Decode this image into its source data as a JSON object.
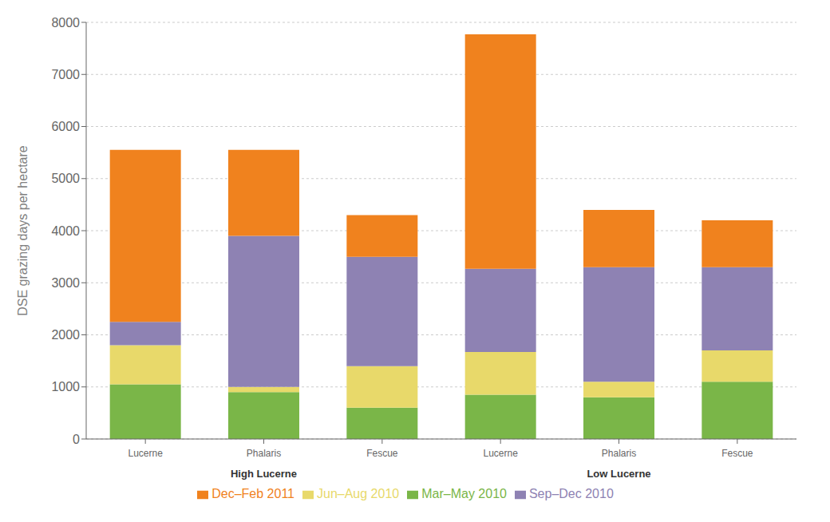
{
  "chart_data": {
    "type": "bar",
    "stacked": true,
    "categories": [
      "Lucerne",
      "Phalaris",
      "Fescue",
      "Lucerne",
      "Phalaris",
      "Fescue"
    ],
    "category_groups": [
      "High Lucerne",
      "High Lucerne",
      "High Lucerne",
      "Low Lucerne",
      "Low Lucerne",
      "Low Lucerne"
    ],
    "series": [
      {
        "name": "Mar–May 2010",
        "color": "#7ab648",
        "values": [
          1050,
          900,
          600,
          850,
          800,
          1100
        ]
      },
      {
        "name": "Jun–Aug 2010",
        "color": "#e8d96a",
        "values": [
          750,
          100,
          800,
          820,
          300,
          600
        ]
      },
      {
        "name": "Sep–Dec 2010",
        "color": "#8e82b3",
        "values": [
          450,
          2900,
          2100,
          1600,
          2200,
          1600
        ]
      },
      {
        "name": "Dec–Feb 2011",
        "color": "#f0821e",
        "values": [
          3300,
          1650,
          800,
          4500,
          1100,
          900
        ]
      }
    ],
    "ylabel": "DSE grazing days per hectare",
    "ylim": [
      0,
      8000
    ],
    "yticks": [
      0,
      1000,
      2000,
      3000,
      4000,
      5000,
      6000,
      7000,
      8000
    ],
    "grid": true,
    "legend": "bottom"
  }
}
